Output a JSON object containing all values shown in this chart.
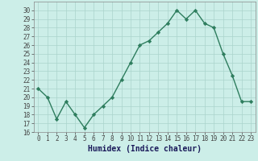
{
  "x": [
    0,
    1,
    2,
    3,
    4,
    5,
    6,
    7,
    8,
    9,
    10,
    11,
    12,
    13,
    14,
    15,
    16,
    17,
    18,
    19,
    20,
    21,
    22,
    23
  ],
  "y": [
    21,
    20,
    17.5,
    19.5,
    18,
    16.5,
    18,
    19,
    20,
    22,
    24,
    26,
    26.5,
    27.5,
    28.5,
    30,
    29,
    30,
    28.5,
    28,
    25,
    22.5,
    19.5,
    19.5
  ],
  "xlabel": "Humidex (Indice chaleur)",
  "line_color": "#2e7d5e",
  "marker_color": "#2e7d5e",
  "bg_color": "#cceee8",
  "grid_color": "#aad4cc",
  "ylim": [
    16,
    31
  ],
  "xlim": [
    -0.5,
    23.5
  ],
  "yticks": [
    16,
    17,
    18,
    19,
    20,
    21,
    22,
    23,
    24,
    25,
    26,
    27,
    28,
    29,
    30
  ],
  "xticks": [
    0,
    1,
    2,
    3,
    4,
    5,
    6,
    7,
    8,
    9,
    10,
    11,
    12,
    13,
    14,
    15,
    16,
    17,
    18,
    19,
    20,
    21,
    22,
    23
  ],
  "tick_label_fontsize": 5.5,
  "xlabel_fontsize": 7,
  "marker_size": 4,
  "line_width": 1.0
}
